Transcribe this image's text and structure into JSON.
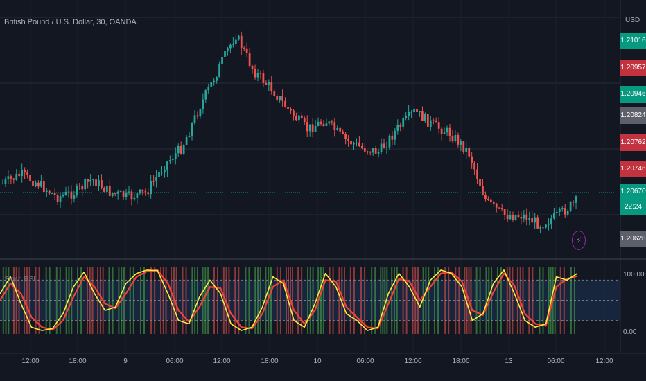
{
  "chart": {
    "title": "British Pound / U.S. Dollar, 30, OANDA",
    "currency": "USD",
    "indicator_label": "Stoch RSI"
  },
  "price_tags": [
    {
      "text": "1.21016",
      "color": "#089981"
    },
    {
      "text": "1.20957",
      "color": "#c2333f"
    },
    {
      "text": "1.20946",
      "color": "#089981"
    },
    {
      "text": "1.20824",
      "color": "#5d606b"
    },
    {
      "text": "1.20762",
      "color": "#c2333f"
    },
    {
      "text": "1.20746",
      "color": "#c2333f"
    },
    {
      "text": "1.20670",
      "color": "#089981"
    },
    {
      "text": "22:24",
      "color": "#089981"
    },
    {
      "text": "1.20628",
      "color": "#5d606b"
    }
  ],
  "rsi_scale": {
    "top": "100.00",
    "bottom": "0.00"
  },
  "time_labels": [
    "12:00",
    "18:00",
    "9",
    "06:00",
    "12:00",
    "18:00",
    "10",
    "06:00",
    "12:00",
    "18:00",
    "13",
    "06:00",
    "12:00"
  ],
  "colors": {
    "up": "#26a69a",
    "down": "#ef5350",
    "k_line": "#ffeb3b",
    "d_line": "#f44336",
    "grid": "#2a2e39",
    "background": "#131722",
    "band": "#1e3a5f"
  },
  "icons": {
    "alert": "lightning-icon"
  },
  "chart_data": [
    {
      "type": "candlestick",
      "title": "British Pound / U.S. Dollar, 30, OANDA",
      "ylabel": "USD",
      "visible_price_levels": [
        1.21016,
        1.20957,
        1.20946,
        1.20824,
        1.20762,
        1.20746,
        1.2067,
        1.20628
      ],
      "x_tick_labels": [
        "12:00",
        "18:00",
        "9",
        "06:00",
        "12:00",
        "18:00",
        "10",
        "06:00",
        "12:00",
        "18:00",
        "13",
        "06:00",
        "12:00"
      ],
      "close_path": [
        1.2071,
        1.2073,
        1.2071,
        1.2068,
        1.2069,
        1.2072,
        1.2069,
        1.2068,
        1.2069,
        1.2075,
        1.2079,
        1.2088,
        1.2096,
        1.2104,
        1.2096,
        1.2092,
        1.2087,
        1.2083,
        1.2085,
        1.2081,
        1.2079,
        1.2078,
        1.2083,
        1.2087,
        1.2084,
        1.2082,
        1.2078,
        1.2067,
        1.2064,
        1.2064,
        1.2062,
        1.2064,
        1.2067
      ]
    },
    {
      "type": "line",
      "title": "Stoch RSI",
      "ylim": [
        0,
        100
      ],
      "y_tick_labels": [
        "100.00",
        "0.00"
      ],
      "series": [
        {
          "values": [
            60,
            85,
            45,
            10,
            5,
            8,
            30,
            70,
            92,
            60,
            35,
            40,
            75,
            90,
            95,
            94,
            60,
            20,
            15,
            55,
            80,
            60,
            15,
            5,
            10,
            40,
            85,
            75,
            20,
            10,
            45,
            90,
            70,
            30,
            20,
            5,
            10,
            60,
            90,
            70,
            40,
            80,
            95,
            90,
            70,
            20,
            30,
            75,
            95,
            60,
            20,
            10,
            15,
            85,
            80,
            90
          ]
        },
        {
          "values": [
            50,
            75,
            60,
            25,
            10,
            6,
            20,
            55,
            85,
            70,
            45,
            38,
            60,
            85,
            93,
            95,
            75,
            35,
            18,
            40,
            70,
            68,
            30,
            10,
            8,
            30,
            70,
            80,
            35,
            15,
            35,
            80,
            78,
            40,
            25,
            10,
            8,
            45,
            82,
            78,
            50,
            70,
            90,
            92,
            78,
            35,
            28,
            62,
            90,
            72,
            30,
            15,
            12,
            70,
            82,
            86
          ]
        }
      ]
    }
  ]
}
